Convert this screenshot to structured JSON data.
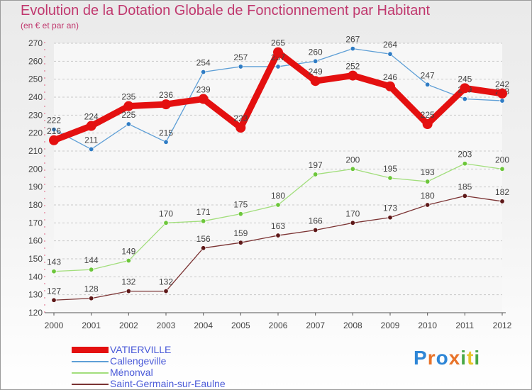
{
  "title": "Evolution de la Dotation Globale de Fonctionnement par Habitant",
  "subtitle": "(en € et par an)",
  "logo": {
    "text": "Proxiti",
    "colors": [
      "#2e86d6",
      "#e8732a",
      "#2e86d6",
      "#e8732a",
      "#47a845",
      "#e8c42a",
      "#47a845"
    ]
  },
  "chart_data": {
    "type": "line",
    "title": "Evolution de la Dotation Globale de Fonctionnement par Habitant",
    "subtitle": "(en € et par an)",
    "categories": [
      "2000",
      "2001",
      "2002",
      "2003",
      "2004",
      "2005",
      "2006",
      "2007",
      "2008",
      "2009",
      "2010",
      "2011",
      "2012"
    ],
    "ylim": [
      120,
      270
    ],
    "yticks": [
      120,
      130,
      140,
      150,
      160,
      170,
      180,
      190,
      200,
      210,
      220,
      230,
      240,
      250,
      260,
      270
    ],
    "grid": "dashed-horizontal",
    "series": [
      {
        "name": "Callengeville",
        "color": "#5e9fd6",
        "marker": "#2f7cc4",
        "weight": "thin",
        "values": [
          222,
          211,
          225,
          215,
          254,
          257,
          257,
          260,
          267,
          264,
          247,
          239,
          238
        ]
      },
      {
        "name": "Ménonval",
        "color": "#a2de7c",
        "marker": "#6cc63a",
        "weight": "thin",
        "values": [
          143,
          144,
          149,
          170,
          171,
          175,
          180,
          197,
          200,
          195,
          193,
          203,
          200
        ]
      },
      {
        "name": "Saint-Germain-sur-Eaulne",
        "color": "#7b3333",
        "marker": "#5e1818",
        "weight": "thin",
        "values": [
          127,
          128,
          132,
          132,
          156,
          159,
          163,
          166,
          170,
          173,
          180,
          185,
          182
        ]
      },
      {
        "name": "VATIERVILLE",
        "color": "#e41010",
        "marker": "#e41010",
        "weight": "thick",
        "values": [
          216,
          224,
          235,
          236,
          239,
          223,
          265,
          249,
          252,
          246,
          225,
          245,
          242
        ]
      }
    ],
    "legend": {
      "placement": "bottom-left",
      "items": [
        "VATIERVILLE",
        "Callengeville",
        "Ménonval",
        "Saint-Germain-sur-Eaulne"
      ]
    }
  }
}
